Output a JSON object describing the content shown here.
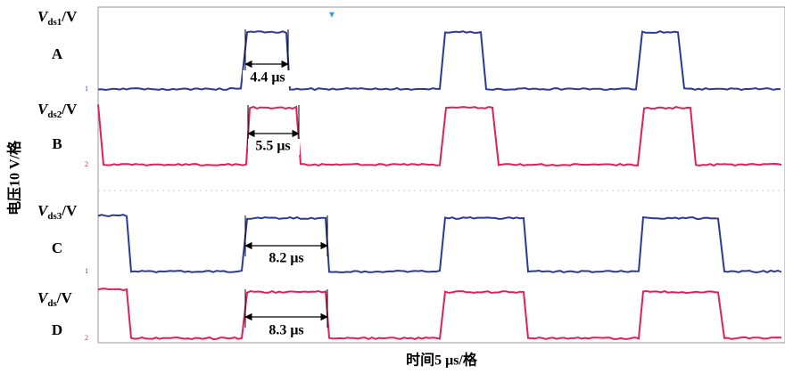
{
  "signals": [
    {
      "symbol": "V",
      "subscript": "ds1",
      "unit": "/V",
      "label": "A",
      "measurement": "4.4 μs"
    },
    {
      "symbol": "V",
      "subscript": "ds2",
      "unit": "/V",
      "label": "B",
      "measurement": "5.5 μs"
    },
    {
      "symbol": "V",
      "subscript": "ds3",
      "unit": "/V",
      "label": "C",
      "measurement": "8.2 μs"
    },
    {
      "symbol": "V",
      "subscript": "ds",
      "unit": "/V",
      "label": "D",
      "measurement": "8.3 μs"
    }
  ],
  "y_axis_label": "电压10 V/格",
  "x_axis_label": "时间5 μs/格"
}
